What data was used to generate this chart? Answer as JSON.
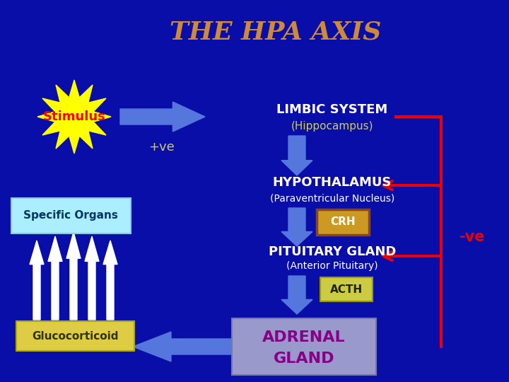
{
  "title": "THE HPA AXIS",
  "title_color": "#CD8A3A",
  "bg_color": "#0A0EA8",
  "limbic_text1": "LIMBIC SYSTEM",
  "limbic_text2": "(Hippocampus)",
  "hypo_text1": "HYPOTHALAMUS",
  "hypo_text2": "(Paraventricular Nucleus)",
  "crh_text": "CRH",
  "pit_text1": "PITUITARY GLAND",
  "pit_text2": "(Anterior Pituitary)",
  "acth_text": "ACTH",
  "adrenal_text1": "ADRENAL",
  "adrenal_text2": "GLAND",
  "spec_text": "Specific Organs",
  "gluco_text": "Glucocorticoid",
  "plus_ve": "+ve",
  "minus_ve": "-ve",
  "stimulus_text": "Stimulus",
  "arrow_blue": "#5577DD",
  "text_white": "#FFFFFF",
  "text_yellow": "#CCCC66",
  "crh_bg": "#CC9922",
  "crh_border": "#8B4513",
  "acth_bg": "#CCCC44",
  "adrenal_bg": "#9999CC",
  "adrenal_text_color": "#880088",
  "spec_bg": "#AAEEFF",
  "spec_text_color": "#003366",
  "gluco_bg": "#DDCC44",
  "gluco_text_color": "#333300",
  "red_color": "#EE0000"
}
